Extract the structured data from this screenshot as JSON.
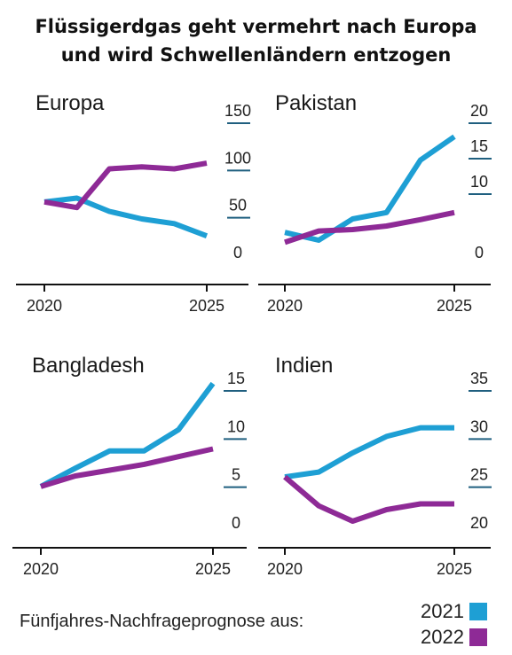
{
  "title": {
    "line1": "Flüssigerdgas geht vermehrt nach Europa",
    "line2": "und wird Schwellenländern entzogen"
  },
  "colors": {
    "2021": "#1e9fd4",
    "2022": "#8e2a96",
    "axis": "#111111",
    "tick": "#1f5f7f"
  },
  "legend": {
    "label": "Fünfjahres-Nachfrageprognose aus:",
    "items": [
      {
        "year": "2021",
        "color": "#1e9fd4"
      },
      {
        "year": "2022",
        "color": "#8e2a96"
      }
    ]
  },
  "chart_data": [
    {
      "type": "line",
      "title": "Europa",
      "x": [
        2020,
        2021,
        2022,
        2023,
        2024,
        2025
      ],
      "x_tick_labels": [
        "2020",
        "2025"
      ],
      "ylim": [
        0,
        150
      ],
      "y_ticks": [
        0,
        50,
        100,
        150
      ],
      "series": [
        {
          "name": "2021",
          "values": [
            63,
            67,
            53,
            45,
            40,
            27
          ]
        },
        {
          "name": "2022",
          "values": [
            63,
            57,
            98,
            100,
            98,
            104
          ]
        }
      ]
    },
    {
      "type": "line",
      "title": "Pakistan",
      "x": [
        2020,
        2021,
        2022,
        2023,
        2024,
        2025
      ],
      "x_tick_labels": [
        "2020",
        "2025"
      ],
      "ylim": [
        0,
        20
      ],
      "y_ticks": [
        0,
        10,
        15,
        20
      ],
      "series": [
        {
          "name": "2021",
          "values": [
            4.1,
            3.0,
            6.0,
            6.9,
            14.3,
            17.6
          ]
        },
        {
          "name": "2022",
          "values": [
            2.7,
            4.3,
            4.5,
            5.0,
            5.9,
            6.9
          ]
        }
      ]
    },
    {
      "type": "line",
      "title": "Bangladesh",
      "x": [
        2020,
        2021,
        2022,
        2023,
        2024,
        2025
      ],
      "x_tick_labels": [
        "2020",
        "2025"
      ],
      "ylim": [
        0,
        15
      ],
      "y_ticks": [
        0,
        5,
        10,
        15
      ],
      "series": [
        {
          "name": "2021",
          "values": [
            4.7,
            6.6,
            8.4,
            8.4,
            10.6,
            15.4
          ]
        },
        {
          "name": "2022",
          "values": [
            4.7,
            5.8,
            6.4,
            7.0,
            7.8,
            8.6
          ]
        }
      ]
    },
    {
      "type": "line",
      "title": "Indien",
      "x": [
        2020,
        2021,
        2022,
        2023,
        2024,
        2025
      ],
      "x_tick_labels": [
        "2020",
        "2025"
      ],
      "ylim": [
        20,
        35
      ],
      "y_ticks": [
        20,
        25,
        30,
        35
      ],
      "series": [
        {
          "name": "2021",
          "values": [
            25.7,
            26.2,
            28.2,
            29.9,
            30.8,
            30.8
          ]
        },
        {
          "name": "2022",
          "values": [
            25.7,
            22.7,
            21.1,
            22.3,
            22.9,
            22.9
          ]
        }
      ]
    }
  ]
}
